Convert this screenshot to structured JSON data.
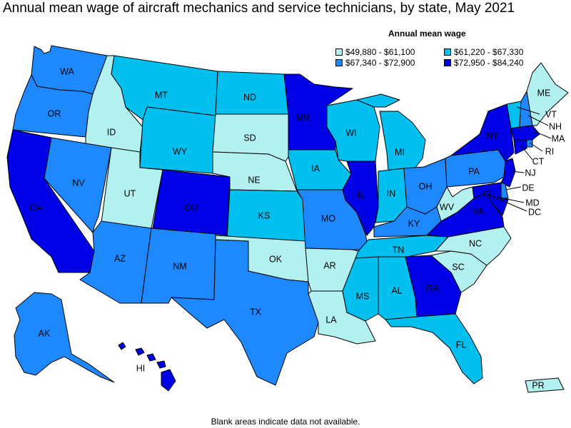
{
  "title": "Annual mean wage of aircraft mechanics and service technicians, by state, May 2021",
  "legend": {
    "title": "Annual mean wage",
    "items": [
      {
        "label": "$49,880 - $61,100",
        "color": "#b3f0f0"
      },
      {
        "label": "$61,220 - $67,330",
        "color": "#00c0f0"
      },
      {
        "label": "$67,340 - $72,900",
        "color": "#1e88ff"
      },
      {
        "label": "$72,950 - $84,240",
        "color": "#0000e6"
      }
    ]
  },
  "footnote": "Blank areas indicate data not available.",
  "states": [
    {
      "abbr": "WA",
      "tier": 2
    },
    {
      "abbr": "OR",
      "tier": 2
    },
    {
      "abbr": "CA",
      "tier": 3
    },
    {
      "abbr": "ID",
      "tier": 0
    },
    {
      "abbr": "NV",
      "tier": 2
    },
    {
      "abbr": "UT",
      "tier": 0
    },
    {
      "abbr": "AZ",
      "tier": 2
    },
    {
      "abbr": "MT",
      "tier": 1
    },
    {
      "abbr": "WY",
      "tier": 1
    },
    {
      "abbr": "CO",
      "tier": 3
    },
    {
      "abbr": "NM",
      "tier": 2
    },
    {
      "abbr": "ND",
      "tier": 1
    },
    {
      "abbr": "SD",
      "tier": 0
    },
    {
      "abbr": "NE",
      "tier": 0
    },
    {
      "abbr": "KS",
      "tier": 1
    },
    {
      "abbr": "OK",
      "tier": 0
    },
    {
      "abbr": "TX",
      "tier": 2
    },
    {
      "abbr": "MN",
      "tier": 3
    },
    {
      "abbr": "IA",
      "tier": 1
    },
    {
      "abbr": "MO",
      "tier": 2
    },
    {
      "abbr": "AR",
      "tier": 0
    },
    {
      "abbr": "LA",
      "tier": 0
    },
    {
      "abbr": "WI",
      "tier": 1
    },
    {
      "abbr": "IL",
      "tier": 3
    },
    {
      "abbr": "MI",
      "tier": 1
    },
    {
      "abbr": "IN",
      "tier": 1
    },
    {
      "abbr": "OH",
      "tier": 2
    },
    {
      "abbr": "KY",
      "tier": 2
    },
    {
      "abbr": "TN",
      "tier": 1
    },
    {
      "abbr": "MS",
      "tier": 1
    },
    {
      "abbr": "AL",
      "tier": 1
    },
    {
      "abbr": "GA",
      "tier": 3
    },
    {
      "abbr": "FL",
      "tier": 1
    },
    {
      "abbr": "SC",
      "tier": 0
    },
    {
      "abbr": "NC",
      "tier": 0
    },
    {
      "abbr": "VA",
      "tier": 3
    },
    {
      "abbr": "WV",
      "tier": 0
    },
    {
      "abbr": "PA",
      "tier": 2
    },
    {
      "abbr": "NY",
      "tier": 3
    },
    {
      "abbr": "VT",
      "tier": 1
    },
    {
      "abbr": "NH",
      "tier": 2
    },
    {
      "abbr": "ME",
      "tier": 0
    },
    {
      "abbr": "MA",
      "tier": 3
    },
    {
      "abbr": "RI",
      "tier": 2
    },
    {
      "abbr": "CT",
      "tier": 3
    },
    {
      "abbr": "NJ",
      "tier": 3
    },
    {
      "abbr": "DE",
      "tier": 2
    },
    {
      "abbr": "MD",
      "tier": 3
    },
    {
      "abbr": "DC",
      "tier": 3
    },
    {
      "abbr": "AK",
      "tier": 2
    },
    {
      "abbr": "HI",
      "tier": 3
    },
    {
      "abbr": "PR",
      "tier": 0
    }
  ]
}
